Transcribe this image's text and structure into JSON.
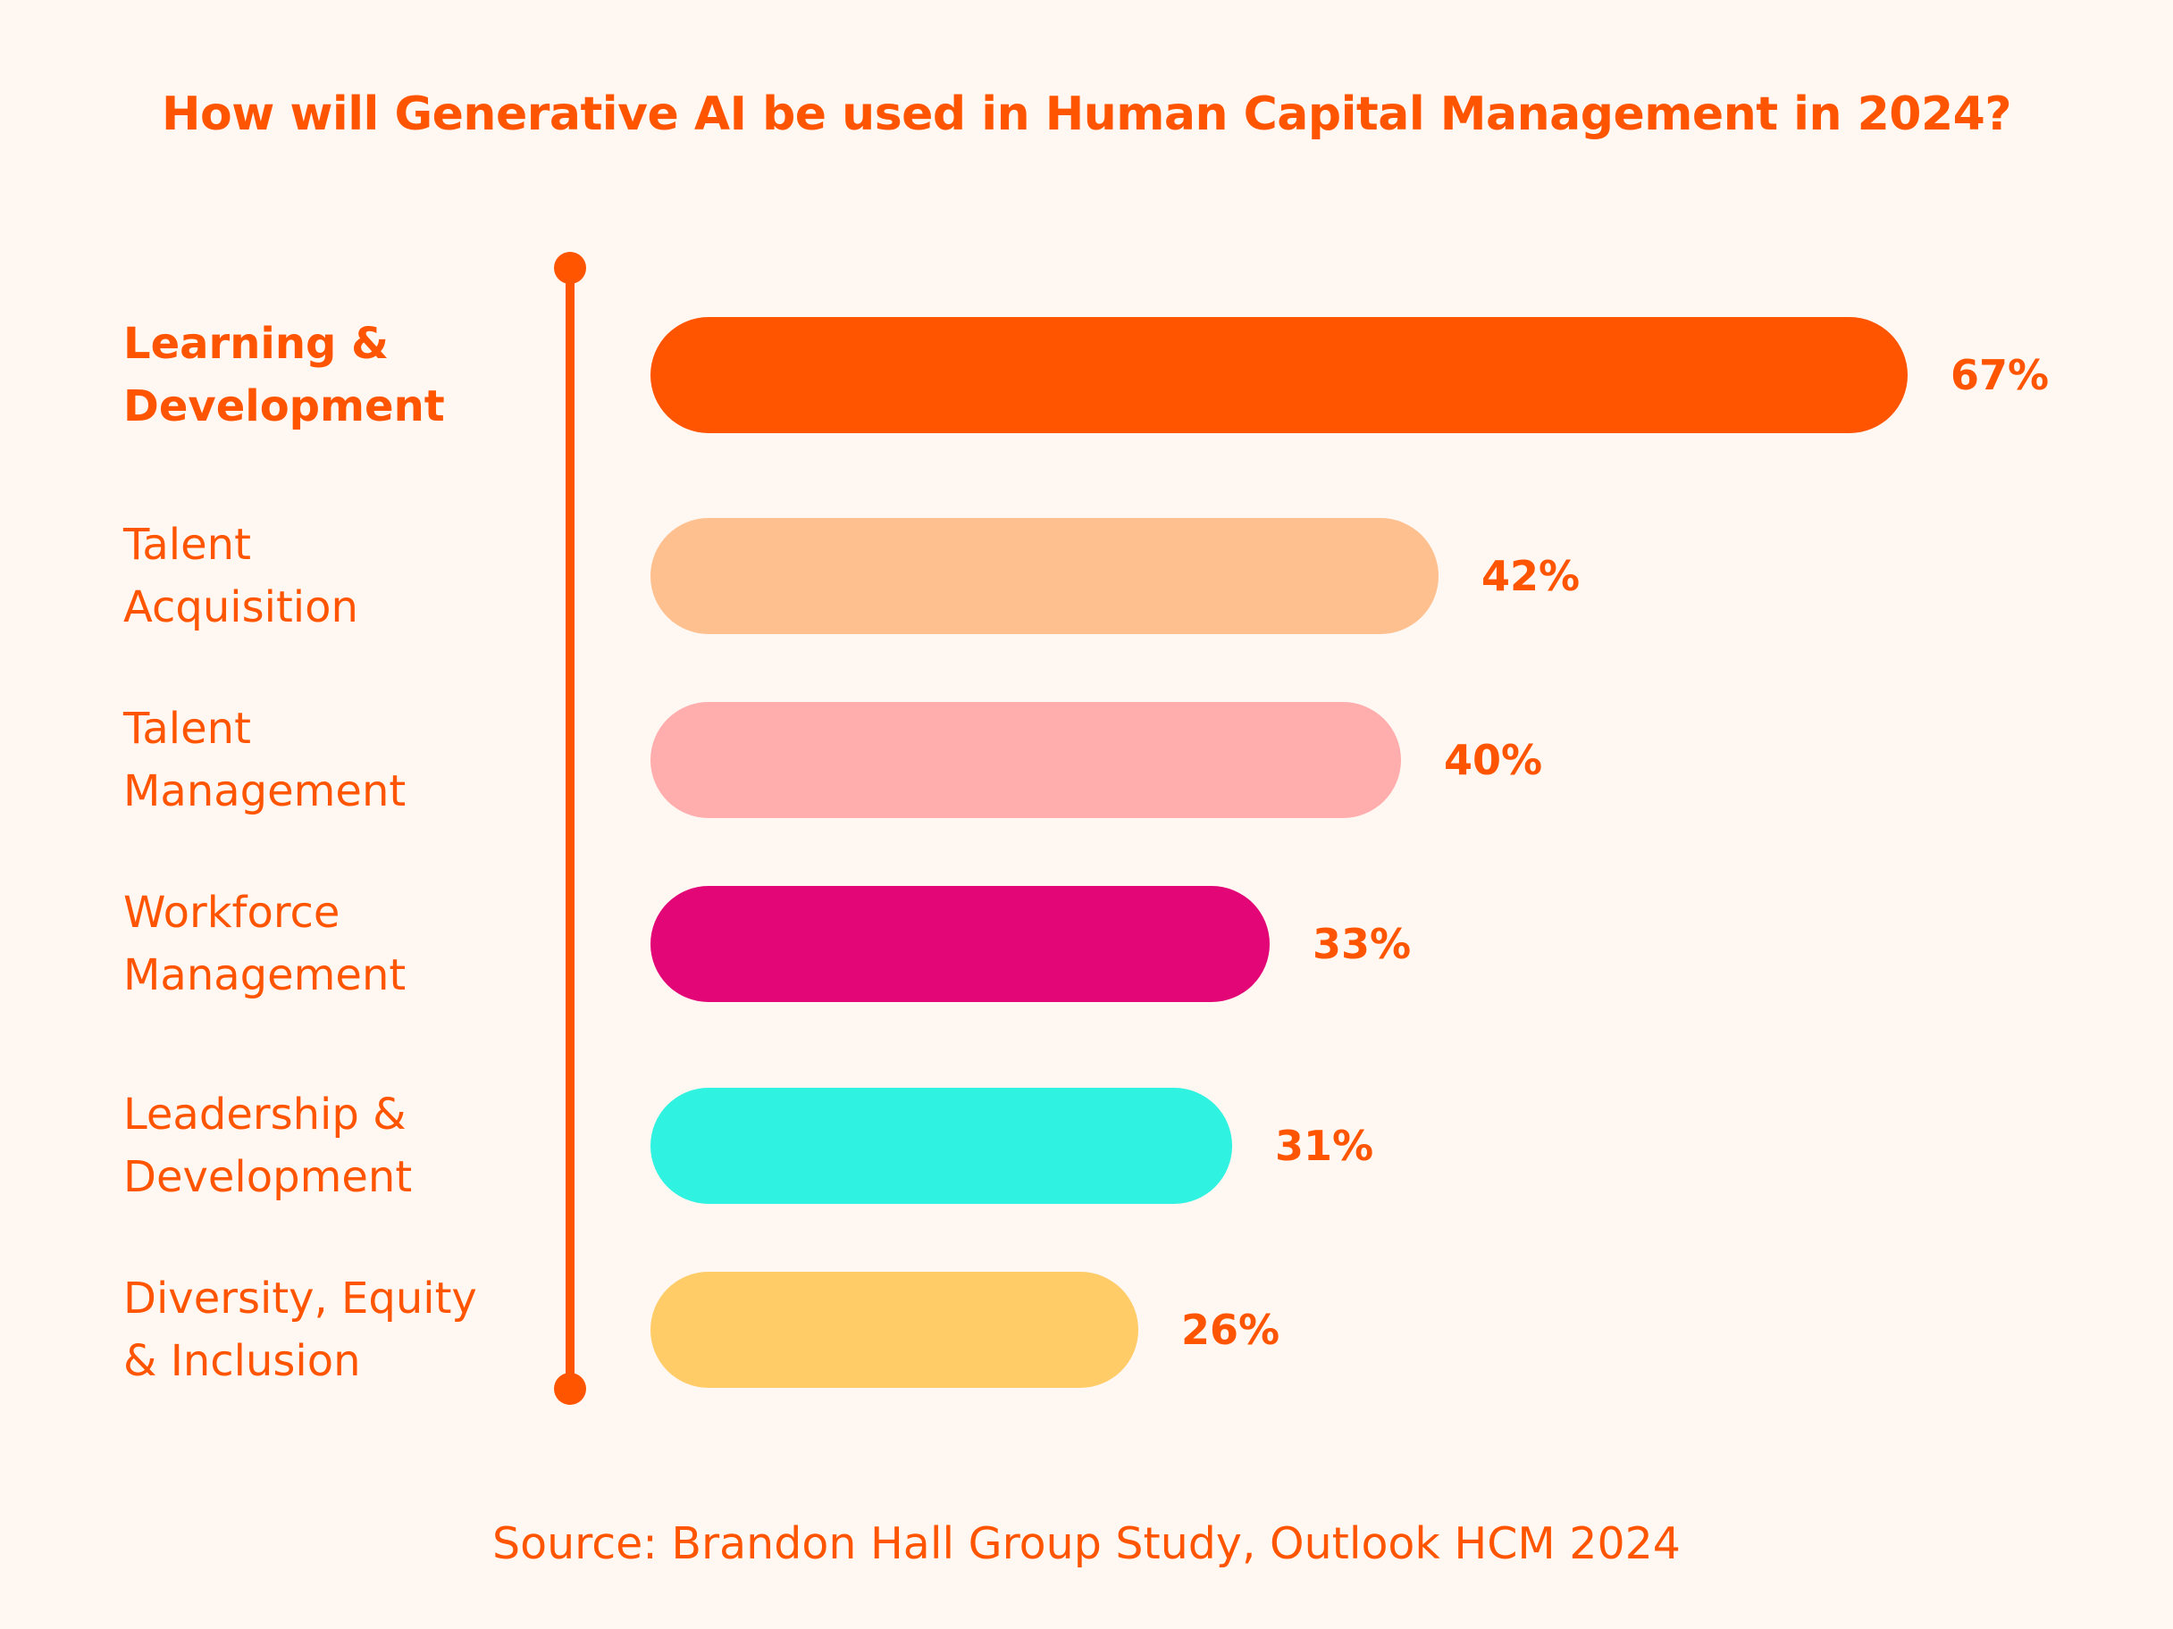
{
  "chart_data": {
    "type": "bar",
    "orientation": "horizontal",
    "title": "How will Generative AI be used in Human Capital Management in 2024?",
    "source": "Source: Brandon Hall Group Study, Outlook HCM 2024",
    "categories": [
      [
        "Learning &",
        "Development"
      ],
      [
        "Talent",
        "Acquisition"
      ],
      [
        "Talent",
        "Management"
      ],
      [
        "Workforce",
        "Management"
      ],
      [
        "Leadership &",
        "Development"
      ],
      [
        "Diversity, Equity",
        "& Inclusion"
      ]
    ],
    "values": [
      67,
      42,
      40,
      33,
      31,
      26
    ],
    "value_labels": [
      "67%",
      "42%",
      "40%",
      "33%",
      "31%",
      "26%"
    ],
    "bar_colors": [
      "#FF5500",
      "#FFC08F",
      "#FFADAD",
      "#E30677",
      "#2FF3E0",
      "#FFCC68"
    ],
    "highlighted_category_index": 0,
    "axis_color": "#FF5500",
    "text_color": "#FF5500",
    "background": "#FFF7F2",
    "grid": false,
    "legend": "none"
  }
}
